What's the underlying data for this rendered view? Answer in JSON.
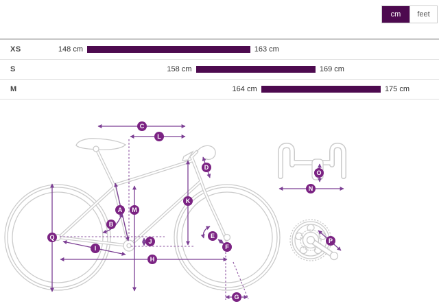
{
  "unit_toggle": {
    "options": [
      "cm",
      "feet"
    ],
    "selected": "cm"
  },
  "size_table": {
    "rows": [
      {
        "size": "XS",
        "min_cm": 148,
        "max_cm": 163,
        "min_label": "148 cm",
        "max_label": "163 cm"
      },
      {
        "size": "S",
        "min_cm": 158,
        "max_cm": 169,
        "min_label": "158 cm",
        "max_label": "169 cm"
      },
      {
        "size": "M",
        "min_cm": 164,
        "max_cm": 175,
        "min_label": "164 cm",
        "max_label": "175 cm"
      }
    ]
  },
  "diagram": {
    "labels": {
      "A": "A",
      "B": "B",
      "C": "C",
      "D": "D",
      "E": "E",
      "F": "F",
      "G": "G",
      "H": "H",
      "I": "I",
      "J": "J",
      "K": "K",
      "L": "L",
      "M": "M",
      "N": "N",
      "O": "O",
      "P": "P",
      "Q": "Q"
    }
  },
  "colors": {
    "accent_dark": "#4D0A4F",
    "annotation_line": "#7C3F94",
    "label_circle": "#7B2383"
  }
}
